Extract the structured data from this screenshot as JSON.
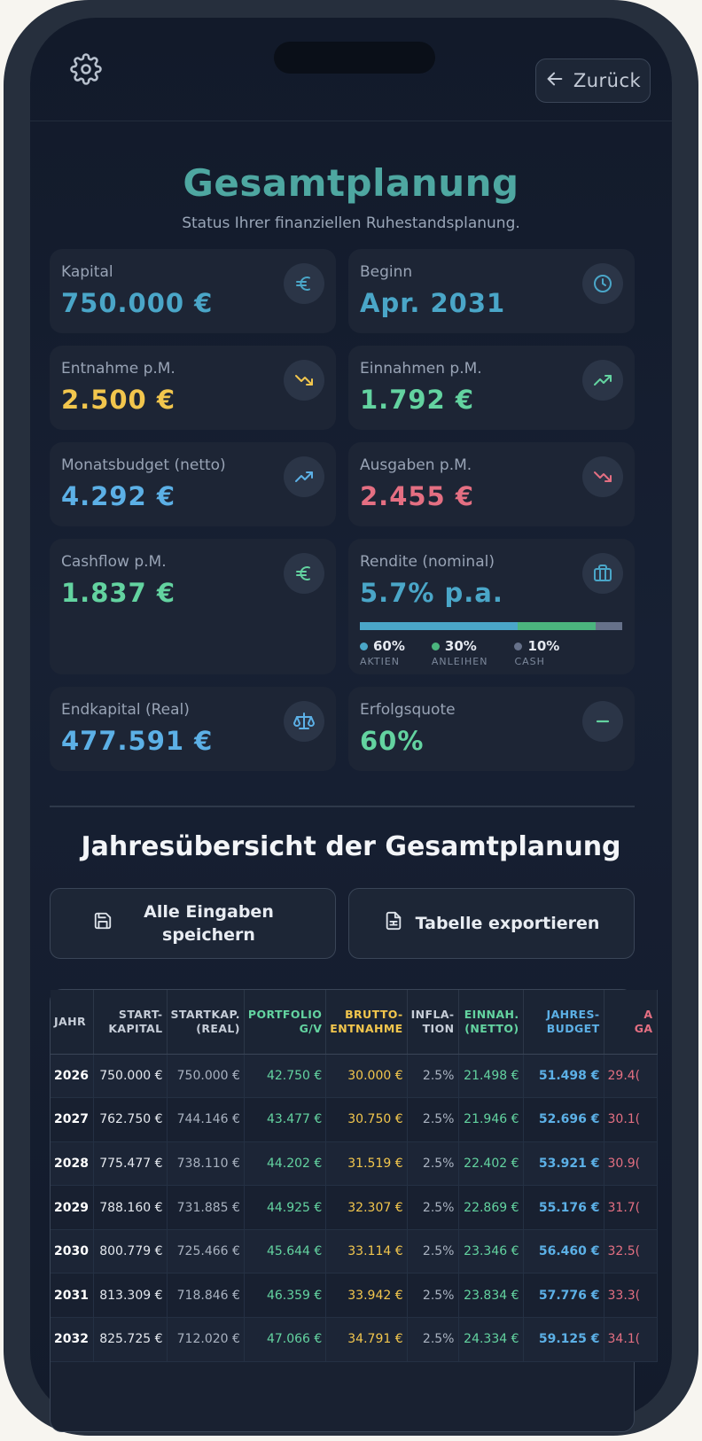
{
  "header": {
    "back_label": "Zurück"
  },
  "page": {
    "title": "Gesamtplanung",
    "subtitle": "Status Ihrer finanziellen Ruhestandsplanung."
  },
  "cards": {
    "kapital": {
      "label": "Kapital",
      "value": "750.000 €"
    },
    "beginn": {
      "label": "Beginn",
      "value": "Apr. 2031"
    },
    "entnahme": {
      "label": "Entnahme p.M.",
      "value": "2.500 €"
    },
    "einnahmen": {
      "label": "Einnahmen p.M.",
      "value": "1.792 €"
    },
    "monatsbudget": {
      "label": "Monatsbudget (netto)",
      "value": "4.292 €"
    },
    "ausgaben": {
      "label": "Ausgaben p.M.",
      "value": "2.455 €"
    },
    "cashflow": {
      "label": "Cashflow p.M.",
      "value": "1.837 €"
    },
    "rendite": {
      "label": "Rendite (nominal)",
      "value": "5.7% p.a."
    },
    "endkapital": {
      "label": "Endkapital (Real)",
      "value": "477.591 €"
    },
    "erfolgsquote": {
      "label": "Erfolgsquote",
      "value": "60%"
    }
  },
  "allocation": [
    {
      "pct": "60%",
      "name": "AKTIEN",
      "fraction": 0.6,
      "color": "#4aa6c8"
    },
    {
      "pct": "30%",
      "name": "ANLEIHEN",
      "fraction": 0.3,
      "color": "#4bb57e"
    },
    {
      "pct": "10%",
      "name": "CASH",
      "fraction": 0.1,
      "color": "#66718a"
    }
  ],
  "section": {
    "title": "Jahresübersicht der Gesamtplanung"
  },
  "actions": {
    "save_label_1": "Alle Eingaben",
    "save_label_2": "speichern",
    "export_label": "Tabelle exportieren"
  },
  "colors": {
    "teal": "#4ea7a1",
    "blue": "#5cb0e6",
    "yellow": "#f2c64d",
    "green": "#63d3a0",
    "red": "#e46f82"
  },
  "table": {
    "columns": [
      {
        "line1": "JAHR",
        "line2": ""
      },
      {
        "line1": "START-",
        "line2": "KAPITAL"
      },
      {
        "line1": "STARTKAP.",
        "line2": "(REAL)"
      },
      {
        "line1": "PORTFOLIO",
        "line2": "G/V"
      },
      {
        "line1": "BRUTTO-",
        "line2": "ENTNAHME"
      },
      {
        "line1": "INFLA-",
        "line2": "TION"
      },
      {
        "line1": "EINNAH.",
        "line2": "(NETTO)"
      },
      {
        "line1": "JAHRES-",
        "line2": "BUDGET"
      },
      {
        "line1": "A",
        "line2": "GA"
      }
    ],
    "rows": [
      [
        "2026",
        "750.000 €",
        "750.000 €",
        "42.750 €",
        "30.000 €",
        "2.5%",
        "21.498 €",
        "51.498 €",
        "29.4("
      ],
      [
        "2027",
        "762.750 €",
        "744.146 €",
        "43.477 €",
        "30.750 €",
        "2.5%",
        "21.946 €",
        "52.696 €",
        "30.1("
      ],
      [
        "2028",
        "775.477 €",
        "738.110 €",
        "44.202 €",
        "31.519 €",
        "2.5%",
        "22.402 €",
        "53.921 €",
        "30.9("
      ],
      [
        "2029",
        "788.160 €",
        "731.885 €",
        "44.925 €",
        "32.307 €",
        "2.5%",
        "22.869 €",
        "55.176 €",
        "31.7("
      ],
      [
        "2030",
        "800.779 €",
        "725.466 €",
        "45.644 €",
        "33.114 €",
        "2.5%",
        "23.346 €",
        "56.460 €",
        "32.5("
      ],
      [
        "2031",
        "813.309 €",
        "718.846 €",
        "46.359 €",
        "33.942 €",
        "2.5%",
        "23.834 €",
        "57.776 €",
        "33.3("
      ],
      [
        "2032",
        "825.725 €",
        "712.020 €",
        "47.066 €",
        "34.791 €",
        "2.5%",
        "24.334 €",
        "59.125 €",
        "34.1("
      ]
    ]
  }
}
